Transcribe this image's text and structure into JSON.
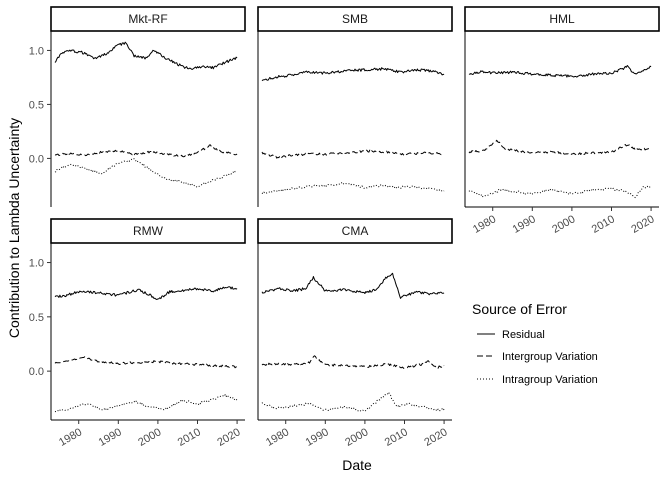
{
  "chart_data": {
    "type": "line",
    "xlabel": "Date",
    "ylabel": "Contribution to Lambda Uncertainty",
    "xlim": [
      1973,
      2022
    ],
    "ylim": [
      -0.45,
      1.18
    ],
    "x_ticks": [
      1980,
      1990,
      2000,
      2010,
      2020
    ],
    "y_ticks": [
      0.0,
      0.5,
      1.0
    ],
    "y_tick_labels": [
      "0.0",
      "0.5",
      "1.0"
    ],
    "grid": false,
    "legend": {
      "title": "Source of Error",
      "position": "right",
      "entries": [
        {
          "label": "Residual",
          "linetype": "solid"
        },
        {
          "label": "Intergroup Variation",
          "linetype": "dashed"
        },
        {
          "label": "Intragroup Variation",
          "linetype": "dotted"
        }
      ]
    },
    "series_names": [
      "Residual",
      "Intergroup Variation",
      "Intragroup Variation"
    ],
    "panels": [
      {
        "name": "Mkt-RF",
        "series": [
          {
            "name": "Residual",
            "x": [
              1974,
              1976,
              1978,
              1981,
              1984,
              1987,
              1990,
              1992,
              1994,
              1997,
              1999,
              2002,
              2005,
              2008,
              2011,
              2014,
              2017,
              2020
            ],
            "values": [
              0.9,
              0.98,
              1.0,
              0.98,
              0.92,
              0.97,
              1.05,
              1.07,
              0.95,
              0.93,
              1.0,
              0.93,
              0.87,
              0.83,
              0.85,
              0.84,
              0.89,
              0.93
            ]
          },
          {
            "name": "Intergroup Variation",
            "x": [
              1974,
              1978,
              1982,
              1986,
              1990,
              1994,
              1998,
              2002,
              2006,
              2010,
              2013,
              2016,
              2020
            ],
            "values": [
              0.03,
              0.05,
              0.03,
              0.06,
              0.07,
              0.04,
              0.06,
              0.04,
              0.02,
              0.05,
              0.12,
              0.06,
              0.04
            ]
          },
          {
            "name": "Intragroup Variation",
            "x": [
              1974,
              1978,
              1982,
              1986,
              1990,
              1994,
              1998,
              2002,
              2006,
              2010,
              2014,
              2017,
              2020
            ],
            "values": [
              -0.12,
              -0.05,
              -0.1,
              -0.14,
              -0.04,
              -0.01,
              -0.1,
              -0.19,
              -0.22,
              -0.26,
              -0.2,
              -0.16,
              -0.12
            ]
          }
        ]
      },
      {
        "name": "SMB",
        "series": [
          {
            "name": "Residual",
            "x": [
              1974,
              1977,
              1981,
              1985,
              1990,
              1995,
              2000,
              2005,
              2009,
              2013,
              2017,
              2020
            ],
            "values": [
              0.72,
              0.75,
              0.77,
              0.8,
              0.79,
              0.81,
              0.82,
              0.83,
              0.8,
              0.82,
              0.81,
              0.78
            ]
          },
          {
            "name": "Intergroup Variation",
            "x": [
              1974,
              1978,
              1982,
              1986,
              1990,
              1995,
              2000,
              2005,
              2010,
              2015,
              2020
            ],
            "values": [
              0.05,
              0.01,
              0.03,
              0.04,
              0.04,
              0.05,
              0.07,
              0.06,
              0.04,
              0.05,
              0.04
            ]
          },
          {
            "name": "Intragroup Variation",
            "x": [
              1974,
              1978,
              1982,
              1986,
              1990,
              1995,
              2000,
              2004,
              2008,
              2012,
              2016,
              2020
            ],
            "values": [
              -0.32,
              -0.3,
              -0.28,
              -0.26,
              -0.25,
              -0.23,
              -0.27,
              -0.25,
              -0.27,
              -0.26,
              -0.28,
              -0.3
            ]
          }
        ]
      },
      {
        "name": "HML",
        "series": [
          {
            "name": "Residual",
            "x": [
              1974,
              1977,
              1981,
              1985,
              1990,
              1995,
              2000,
              2005,
              2010,
              2014,
              2016,
              2018,
              2020
            ],
            "values": [
              0.78,
              0.8,
              0.79,
              0.8,
              0.78,
              0.77,
              0.76,
              0.78,
              0.79,
              0.85,
              0.78,
              0.82,
              0.85
            ]
          },
          {
            "name": "Intergroup Variation",
            "x": [
              1974,
              1978,
              1981,
              1983,
              1986,
              1990,
              1995,
              2000,
              2005,
              2010,
              2014,
              2016,
              2020
            ],
            "values": [
              0.06,
              0.07,
              0.17,
              0.09,
              0.07,
              0.05,
              0.06,
              0.04,
              0.05,
              0.06,
              0.13,
              0.08,
              0.09
            ]
          },
          {
            "name": "Intragroup Variation",
            "x": [
              1974,
              1978,
              1982,
              1986,
              1990,
              1995,
              2000,
              2005,
              2010,
              2014,
              2016,
              2018,
              2020
            ],
            "values": [
              -0.3,
              -0.35,
              -0.29,
              -0.31,
              -0.33,
              -0.29,
              -0.33,
              -0.29,
              -0.28,
              -0.31,
              -0.36,
              -0.27,
              -0.26
            ]
          }
        ]
      },
      {
        "name": "RMW",
        "series": [
          {
            "name": "Residual",
            "x": [
              1974,
              1977,
              1981,
              1985,
              1990,
              1995,
              1998,
              2000,
              2003,
              2006,
              2010,
              2014,
              2017,
              2020
            ],
            "values": [
              0.68,
              0.7,
              0.74,
              0.72,
              0.7,
              0.75,
              0.7,
              0.66,
              0.73,
              0.74,
              0.76,
              0.74,
              0.77,
              0.76
            ]
          },
          {
            "name": "Intergroup Variation",
            "x": [
              1974,
              1978,
              1981,
              1985,
              1990,
              1995,
              2000,
              2005,
              2010,
              2015,
              2020
            ],
            "values": [
              0.07,
              0.1,
              0.13,
              0.09,
              0.07,
              0.08,
              0.09,
              0.07,
              0.06,
              0.05,
              0.04
            ]
          },
          {
            "name": "Intragroup Variation",
            "x": [
              1974,
              1978,
              1982,
              1986,
              1990,
              1994,
              1998,
              2002,
              2006,
              2010,
              2014,
              2017,
              2020
            ],
            "values": [
              -0.38,
              -0.34,
              -0.3,
              -0.36,
              -0.32,
              -0.28,
              -0.33,
              -0.35,
              -0.27,
              -0.3,
              -0.26,
              -0.22,
              -0.27
            ]
          }
        ]
      },
      {
        "name": "CMA",
        "series": [
          {
            "name": "Residual",
            "x": [
              1974,
              1978,
              1982,
              1985,
              1987,
              1990,
              1995,
              2000,
              2003,
              2005,
              2007,
              2009,
              2013,
              2017,
              2020
            ],
            "values": [
              0.72,
              0.76,
              0.74,
              0.76,
              0.86,
              0.74,
              0.75,
              0.72,
              0.75,
              0.85,
              0.9,
              0.68,
              0.73,
              0.71,
              0.72
            ]
          },
          {
            "name": "Intergroup Variation",
            "x": [
              1974,
              1978,
              1982,
              1986,
              1987,
              1990,
              1995,
              2000,
              2005,
              2008,
              2010,
              2015,
              2016,
              2018,
              2020
            ],
            "values": [
              0.06,
              0.07,
              0.06,
              0.08,
              0.14,
              0.06,
              0.05,
              0.04,
              0.06,
              0.05,
              0.03,
              0.07,
              0.1,
              0.03,
              0.05
            ]
          },
          {
            "name": "Intragroup Variation",
            "x": [
              1974,
              1978,
              1982,
              1986,
              1990,
              1995,
              2000,
              2003,
              2006,
              2008,
              2011,
              2015,
              2018,
              2020
            ],
            "values": [
              -0.3,
              -0.34,
              -0.32,
              -0.3,
              -0.36,
              -0.33,
              -0.37,
              -0.28,
              -0.2,
              -0.33,
              -0.3,
              -0.33,
              -0.36,
              -0.35
            ]
          }
        ]
      }
    ]
  }
}
